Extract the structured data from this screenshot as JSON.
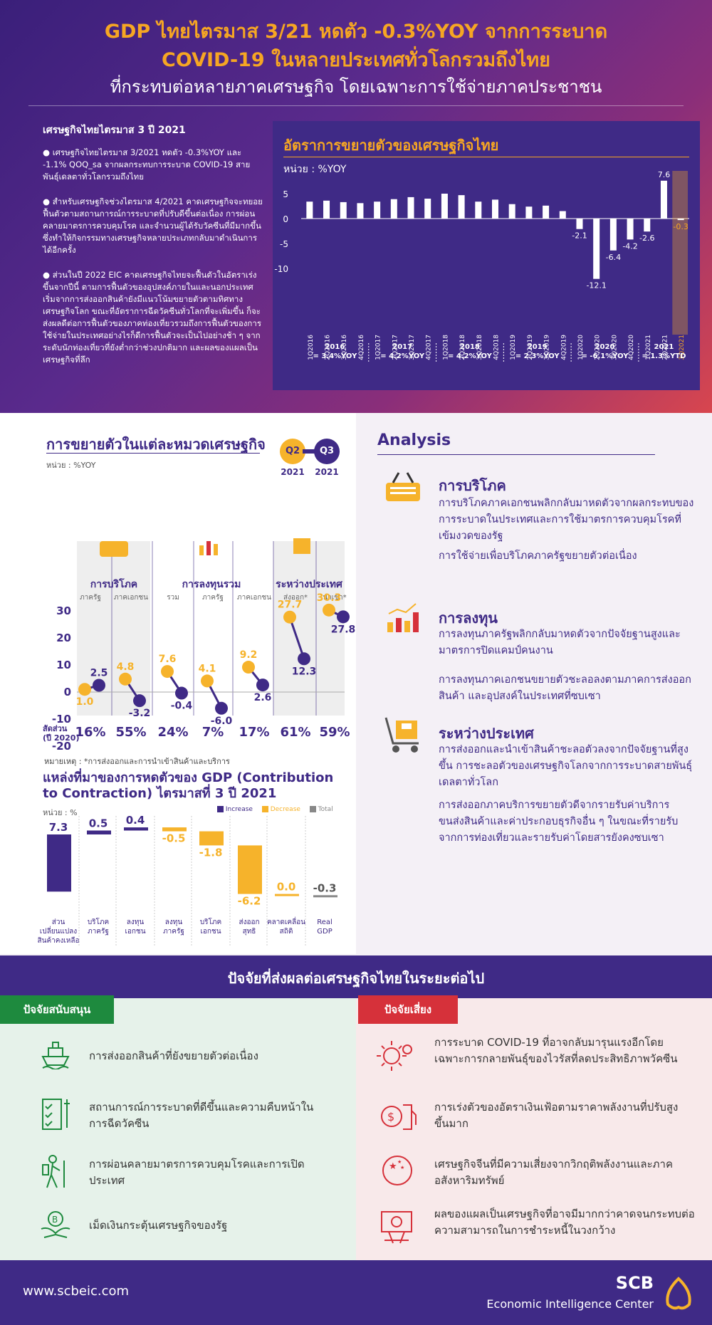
{
  "header": {
    "title_line1": "GDP ไทยไตรมาส 3/21 หดตัว -0.3%YOY จากการระบาด",
    "title_line2": "COVID-19 ในหลายประเทศทั่วโลกรวมถึงไทย",
    "title_line3": "ที่กระทบต่อหลายภาคเศรษฐกิจ โดยเฉพาะการใช้จ่ายภาคประชาชน"
  },
  "summary": {
    "heading": "เศรษฐกิจไทยไตรมาส 3 ปี 2021",
    "p1": "● เศรษฐกิจไทยไตรมาส 3/2021 หดตัว -0.3%YOY และ -1.1% QOQ_sa จากผลกระทบการระบาด COVID-19 สายพันธุ์เดลตาทั่วโลกรวมถึงไทย",
    "p2": "● สำหรับเศรษฐกิจช่วงไตรมาส 4/2021 คาดเศรษฐกิจจะทยอยฟื้นตัวตามสถานการณ์การระบาดที่ปรับดีขึ้นต่อเนื่อง การผ่อนคลายมาตรการควบคุมโรค และจำนวนผู้ได้รับวัคซีนที่มีมากขึ้น ซึ่งทำให้กิจกรรมทางเศรษฐกิจหลายประเภทกลับมาดำเนินการได้อีกครั้ง",
    "p3": "● ส่วนในปี 2022 EIC คาดเศรษฐกิจไทยจะฟื้นตัวในอัตราเร่งขึ้นจากปีนี้ ตามการฟื้นตัวของอุปสงค์ภายในและนอกประเทศ เริ่มจากการส่งออกสินค้ายังมีแนวโน้มขยายตัวตามทิศทางเศรษฐกิจโลก ขณะที่อัตราการฉีดวัคซีนทั่วโลกที่จะเพิ่มขึ้น ก็จะส่งผลดีต่อการฟื้นตัวของภาคท่องเที่ยวรวมถึงการฟื้นตัวของการใช้จ่ายในประเทศอย่างไรก็ดีการฟื้นตัวจะเป็นไปอย่างช้า ๆ จากระดับนักท่องเที่ยวที่ยังต่ำกว่าช่วงปกติมาก และผลของแผลเป็นเศรษฐกิจที่ลึก"
  },
  "gdp_chart": {
    "title": "อัตราการขยายตัวของเศรษฐกิจไทย",
    "unit": "หน่วย : %YOY",
    "chart_data": {
      "type": "bar",
      "categories": [
        "1Q2016",
        "2Q2016",
        "3Q2016",
        "4Q2016",
        "1Q2017",
        "2Q2017",
        "3Q2017",
        "4Q2017",
        "1Q2018",
        "2Q2018",
        "3Q2018",
        "4Q2018",
        "1Q2019",
        "2Q2019",
        "3Q2019",
        "4Q2019",
        "1Q2020",
        "2Q2020",
        "3Q2020",
        "4Q2020",
        "1Q2021",
        "2Q2021",
        "3Q2021"
      ],
      "values": [
        3.4,
        3.6,
        3.3,
        3.1,
        3.4,
        3.9,
        4.3,
        4.0,
        5.0,
        4.7,
        3.4,
        3.8,
        2.9,
        2.4,
        2.6,
        1.5,
        -2.1,
        -12.1,
        -6.4,
        -4.2,
        -2.6,
        7.6,
        -0.3
      ],
      "yticks": [
        5,
        0,
        -5,
        -10
      ],
      "ylim": [
        -14,
        8.5
      ],
      "labeled": {
        "1Q2020": "-2.1",
        "2Q2020": "-12.1",
        "3Q2020": "-6.4",
        "4Q2020": "-4.2",
        "1Q2021": "-2.6",
        "2Q2021": "7.6",
        "3Q2021": "-0.3"
      },
      "years": [
        {
          "year": "2016",
          "value": "= 3.4%YOY"
        },
        {
          "year": "2017",
          "value": "= 4.2%YOY"
        },
        {
          "year": "2018",
          "value": "= 4.2%YOY"
        },
        {
          "year": "2019",
          "value": "= 2.3%YOY"
        },
        {
          "year": "2020",
          "value": "= -6.1%YOY"
        },
        {
          "year": "2021",
          "value": "= 1.3%YTD"
        }
      ],
      "colors": {
        "bar": "#ffffff",
        "highlight": "#f6a623"
      }
    }
  },
  "components": {
    "title": "การขยายตัวในแต่ละหมวดเศรษฐกิจ",
    "unit": "หน่วย : %YOY",
    "legend_q2": "Q2",
    "legend_q2_year": "2021",
    "legend_q3": "Q3",
    "legend_q3_year": "2021",
    "groups": [
      {
        "name": "การบริโภค",
        "subs": [
          "ภาครัฐ",
          "ภาคเอกชน"
        ]
      },
      {
        "name": "การลงทุนรวม",
        "subs": [
          "รวม",
          "ภาครัฐ",
          "ภาคเอกชน"
        ]
      },
      {
        "name": "ระหว่างประเทศ",
        "subs": [
          "ส่งออก*",
          "นำเข้า*"
        ]
      }
    ],
    "chart_data": {
      "type": "scatter",
      "categories": [
        "ภาครัฐ",
        "ภาคเอกชน",
        "รวม",
        "ภาครัฐ",
        "ภาคเอกชน",
        "ส่งออก*",
        "นำเข้า*"
      ],
      "series": [
        {
          "name": "Q2 2021",
          "values": [
            1.0,
            4.8,
            7.6,
            4.1,
            9.2,
            27.7,
            30.3
          ]
        },
        {
          "name": "Q3 2021",
          "values": [
            2.5,
            -3.2,
            -0.4,
            -6.0,
            2.6,
            12.3,
            27.8
          ]
        }
      ],
      "yticks": [
        30,
        20,
        10,
        0,
        -10,
        -20
      ],
      "ylim": [
        -22,
        37
      ],
      "colors": {
        "q2": "#f6b32b",
        "q3": "#3f2a86"
      }
    },
    "share_label": "สัดส่วน",
    "share_label2": "(ปี 2020)",
    "shares": [
      "16%",
      "55%",
      "24%",
      "7%",
      "17%",
      "61%",
      "59%"
    ],
    "note": "หมายเหตุ : *การส่งออกและการนำเข้าสินค้าและบริการ"
  },
  "contribution": {
    "title1": "แหล่งที่มาของการหดตัวของ GDP (Contribution",
    "title2": "to Contraction) ไตรมาสที่ 3 ปี 2021",
    "unit": "หน่วย : %",
    "legend": [
      "Increase",
      "Decrease",
      "Total"
    ],
    "chart_data": {
      "type": "bar",
      "categories": [
        "ส่วนเปลี่ยนแปลงสินค้าคงเหลือ",
        "บริโภคภาครัฐ",
        "ลงทุนเอกชน",
        "ลงทุนภาครัฐ",
        "บริโภคเอกชน",
        "ส่งออกสุทธิ",
        "คลาดเคลื่อนสถิติ",
        "Real GDP"
      ],
      "values": [
        7.3,
        0.5,
        0.4,
        -0.5,
        -1.8,
        -6.2,
        0.0,
        -0.3
      ],
      "labels": [
        "7.3",
        "0.5",
        "0.4",
        "-0.5",
        "-1.8",
        "-6.2",
        "0.0",
        "-0.3"
      ],
      "cat_lines": [
        [
          "ส่วน",
          "เปลี่ยนแปลง",
          "สินค้าคงเหลือ"
        ],
        [
          "บริโภค",
          "ภาครัฐ"
        ],
        [
          "ลงทุน",
          "เอกชน"
        ],
        [
          "ลงทุน",
          "ภาครัฐ"
        ],
        [
          "บริโภค",
          "เอกชน"
        ],
        [
          "ส่งออก",
          "สุทธิ"
        ],
        [
          "คลาดเคลื่อน",
          "สถิติ"
        ],
        [
          "Real",
          "GDP"
        ]
      ],
      "kind": [
        "increase",
        "increase",
        "increase",
        "decrease",
        "decrease",
        "decrease",
        "decrease",
        "total"
      ],
      "colors": {
        "increase": "#3f2a86",
        "decrease": "#f6b32b",
        "total": "#888888"
      }
    }
  },
  "analysis": {
    "title": "Analysis",
    "blocks": [
      {
        "head": "การบริโภค",
        "text1": "การบริโภคภาคเอกชนพลิกกลับมาหดตัวจากผลกระทบของการระบาดในประเทศและการใช้มาตรการควบคุมโรคที่เข้มงวดของรัฐ",
        "text2": "การใช้จ่ายเพื่อบริโภคภาครัฐขยายตัวต่อเนื่อง"
      },
      {
        "head": "การลงทุน",
        "text1": "การลงทุนภาครัฐพลิกกลับมาหดตัวจากปัจจัยฐานสูงและมาตรการปิดแคมป์คนงาน",
        "text2": "การลงทุนภาคเอกชนขยายตัวชะลอลงตามภาคการส่งออกสินค้า และอุปสงค์ในประเทศที่ซบเซา"
      },
      {
        "head": "ระหว่างประเทศ",
        "text1": "การส่งออกและนำเข้าสินค้าชะลอตัวลงจากปัจจัยฐานที่สูงขึ้น การชะลอตัวของเศรษฐกิจโลกจากการระบาดสายพันธุ์เดลตาทั่วโลก",
        "text2": "การส่งออกภาคบริการขยายตัวดีจากรายรับค่าบริการขนส่งสินค้าและค่าประกอบธุรกิจอื่น ๆ ในขณะที่รายรับจากการท่องเที่ยวและรายรับค่าโดยสารยังคงซบเซา"
      }
    ]
  },
  "factors": {
    "title": "ปัจจัยที่ส่งผลต่อเศรษฐกิจไทยในระยะต่อไป",
    "support_tag": "ปัจจัยสนับสนุน",
    "risk_tag": "ปัจจัยเสี่ยง",
    "support": [
      "การส่งออกสินค้าที่ยังขยายตัวต่อเนื่อง",
      "สถานการณ์การระบาดที่ดีขึ้นและความคืบหน้าในการฉีดวัคซีน",
      "การผ่อนคลายมาตรการควบคุมโรคและการเปิดประเทศ",
      "เม็ดเงินกระตุ้นเศรษฐกิจของรัฐ"
    ],
    "risk": [
      "การระบาด COVID-19 ที่อาจกลับมารุนแรงอีกโดยเฉพาะการกลายพันธุ์ของไวรัสที่ลดประสิทธิภาพวัคซีน",
      "การเร่งตัวของอัตราเงินเฟ้อตามราคาพลังงานที่ปรับสูงขึ้นมาก",
      "เศรษฐกิจจีนที่มีความเสี่ยงจากวิกฤติพลังงานและภาคอสังหาริมทรัพย์",
      "ผลของแผลเป็นเศรษฐกิจที่อาจมีมากกว่าคาดจนกระทบต่อความสามารถในการชำระหนี้ในวงกว้าง"
    ],
    "colors": {
      "support": "#1e8a3e",
      "risk": "#d6313a"
    }
  },
  "footer": {
    "url": "www.scbeic.com",
    "brand": "SCB",
    "brand_sub": "Economic Intelligence Center"
  }
}
